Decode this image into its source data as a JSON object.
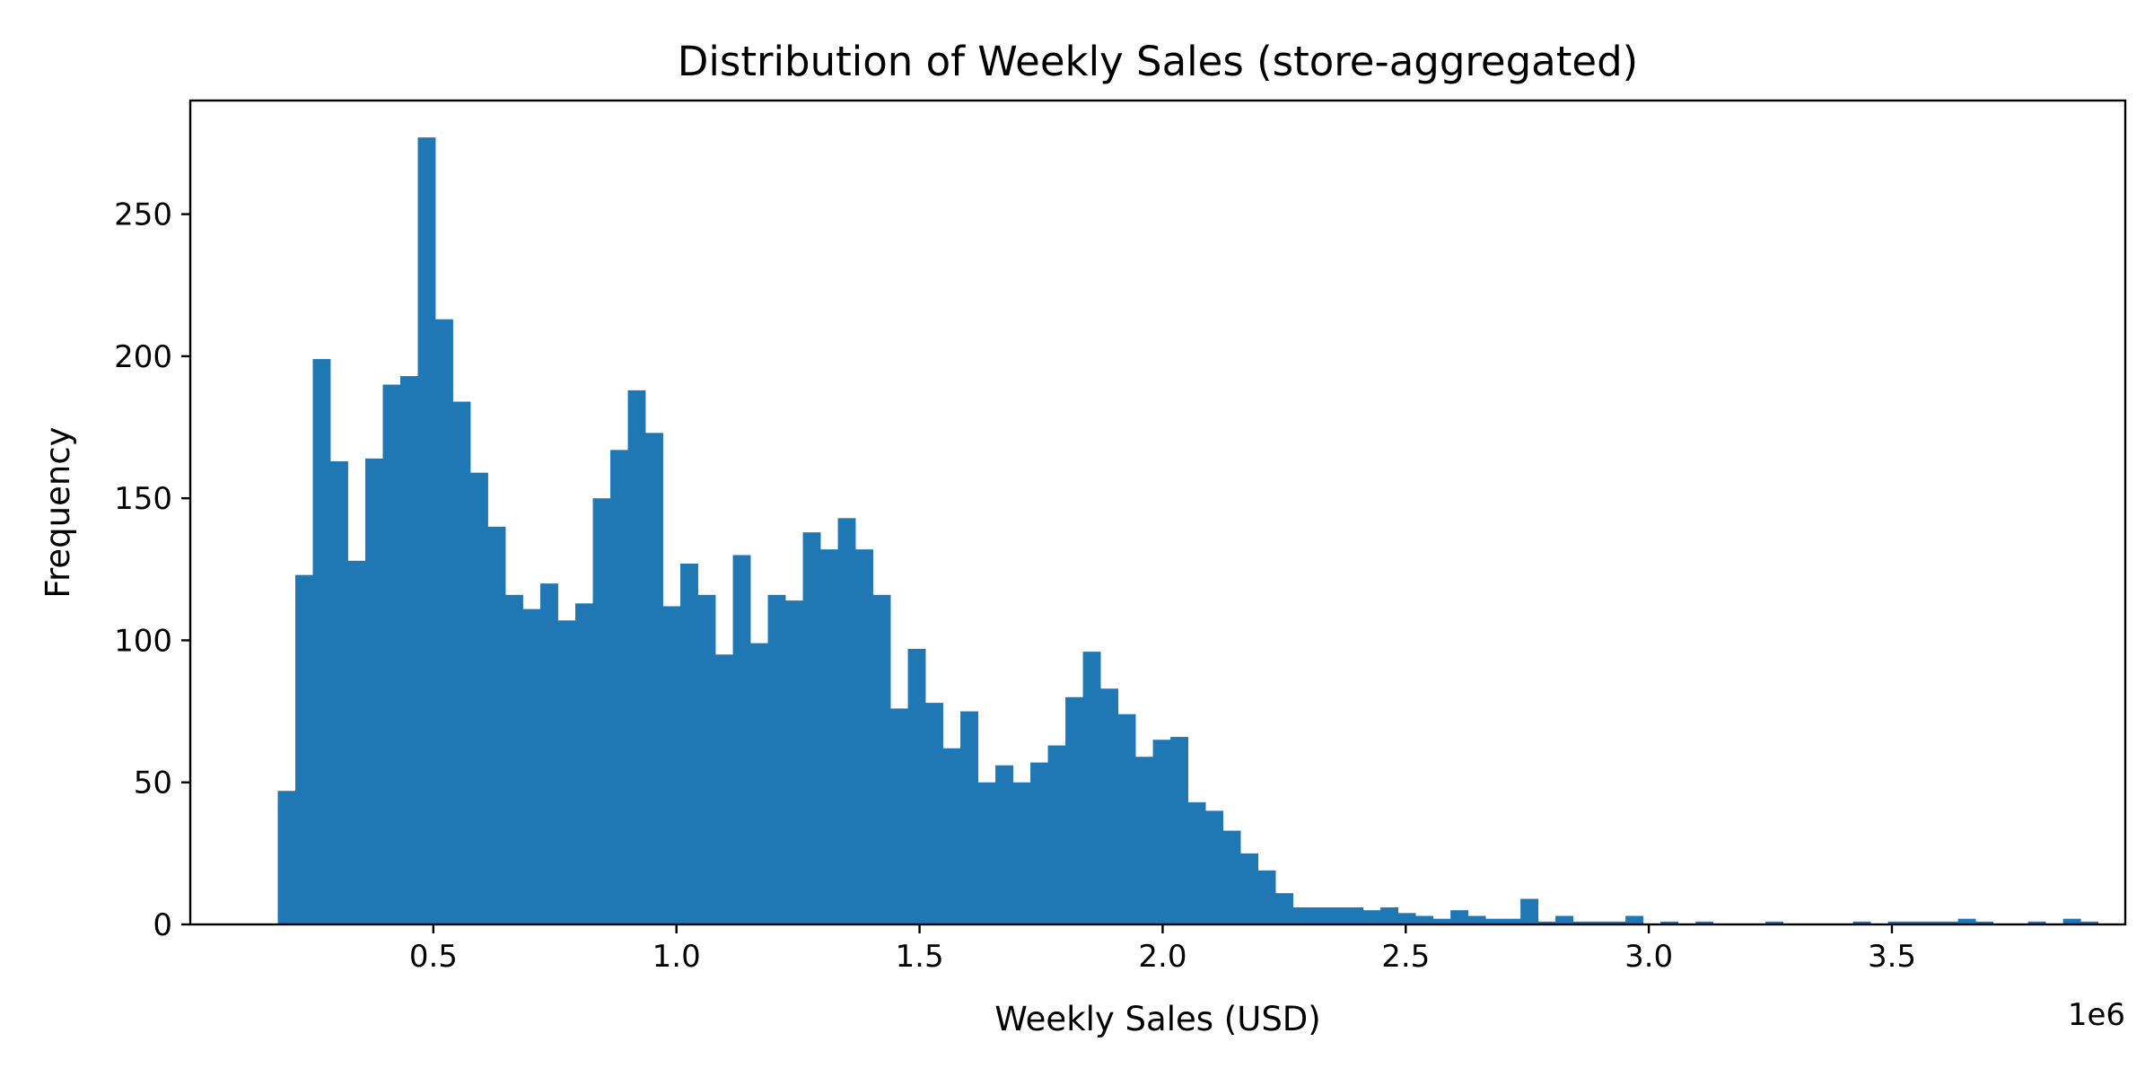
{
  "chart_data": {
    "type": "bar",
    "title": "Distribution of Weekly Sales (store-aggregated)",
    "xlabel": "Weekly Sales (USD)",
    "ylabel": "Frequency",
    "x_offset_label": "1e6",
    "bar_color": "#1f77b4",
    "xlim": [
      0.0,
      3.98
    ],
    "ylim": [
      0,
      290
    ],
    "x_ticks": [
      0.5,
      1.0,
      1.5,
      2.0,
      2.5,
      3.0,
      3.5
    ],
    "x_tick_labels": [
      "0.5",
      "1.0",
      "1.5",
      "2.0",
      "2.5",
      "3.0",
      "3.5"
    ],
    "y_ticks": [
      0,
      50,
      100,
      150,
      200,
      250
    ],
    "y_tick_labels": [
      "0",
      "50",
      "100",
      "150",
      "200",
      "250"
    ],
    "bin_start": 0.18,
    "bin_width": 0.036,
    "values": [
      47,
      123,
      199,
      163,
      128,
      164,
      190,
      193,
      277,
      213,
      184,
      159,
      140,
      116,
      111,
      120,
      107,
      113,
      150,
      167,
      188,
      173,
      112,
      127,
      116,
      95,
      130,
      99,
      116,
      114,
      138,
      132,
      143,
      132,
      116,
      76,
      97,
      78,
      62,
      75,
      50,
      56,
      50,
      57,
      63,
      80,
      96,
      83,
      74,
      59,
      65,
      66,
      43,
      40,
      33,
      25,
      19,
      11,
      6,
      6,
      6,
      6,
      5,
      6,
      4,
      3,
      2,
      5,
      3,
      2,
      2,
      9,
      1,
      3,
      1,
      1,
      1,
      3,
      0,
      1,
      0,
      1,
      0,
      0,
      0,
      1,
      0,
      0,
      0,
      0,
      1,
      0,
      1,
      1,
      1,
      1,
      2,
      1,
      0,
      0,
      1,
      0,
      2,
      1
    ]
  }
}
